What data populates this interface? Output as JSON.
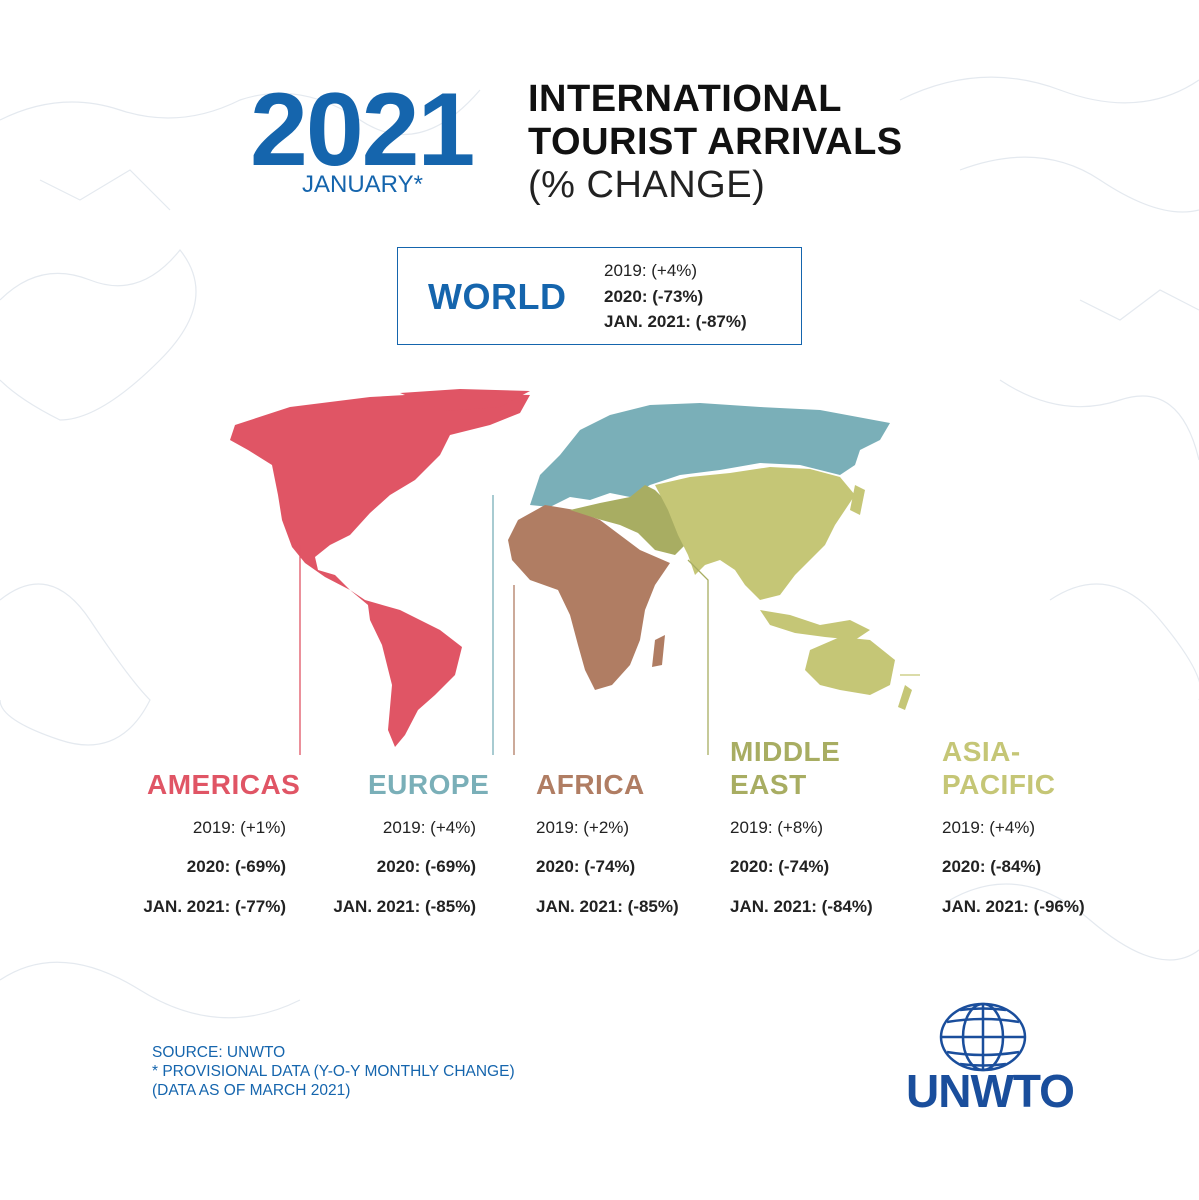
{
  "header": {
    "year": "2021",
    "month": "JANUARY*",
    "title_line1": "INTERNATIONAL",
    "title_line2": "TOURIST ARRIVALS",
    "title_line3": "(% CHANGE)"
  },
  "world": {
    "label": "WORLD",
    "y2019": "2019: (+4%)",
    "y2020": "2020: (-73%)",
    "jan2021": "JAN. 2021: (-87%)"
  },
  "regions": [
    {
      "name": "AMERICAS",
      "color": "#e05565",
      "y2019": "2019: (+1%)",
      "y2020": "2020: (-69%)",
      "jan2021": "JAN. 2021: (-77%)"
    },
    {
      "name": "EUROPE",
      "color": "#7aafb8",
      "y2019": "2019: (+4%)",
      "y2020": "2020: (-69%)",
      "jan2021": "JAN. 2021: (-85%)"
    },
    {
      "name": "AFRICA",
      "color": "#b07d63",
      "y2019": "2019: (+2%)",
      "y2020": "2020: (-74%)",
      "jan2021": "JAN. 2021: (-85%)"
    },
    {
      "name_line1": "MIDDLE",
      "name_line2": "EAST",
      "color": "#a8ad62",
      "y2019": "2019: (+8%)",
      "y2020": "2020: (-74%)",
      "jan2021": "JAN. 2021: (-84%)"
    },
    {
      "name_line1": "ASIA-",
      "name_line2": "PACIFIC",
      "color": "#c5c676",
      "y2019": "2019: (+4%)",
      "y2020": "2020: (-84%)",
      "jan2021": "JAN. 2021: (-96%)"
    }
  ],
  "footer": {
    "source": "SOURCE: UNWTO",
    "note": "* PROVISIONAL DATA (Y-O-Y MONTHLY CHANGE)",
    "asof": "(DATA AS OF MARCH 2021)"
  },
  "logo": {
    "text": "UNWTO",
    "color": "#1a4e9c"
  },
  "colors": {
    "brand": "#1565ad"
  }
}
